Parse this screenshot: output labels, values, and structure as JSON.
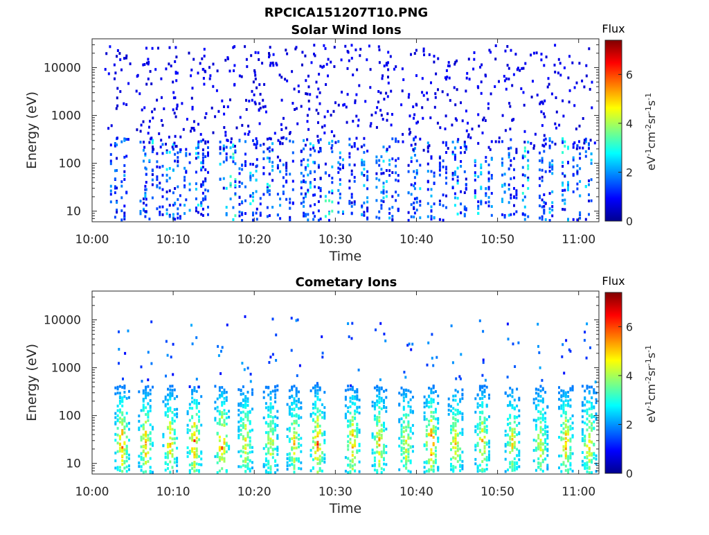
{
  "figure_title": "RPCICA151207T10.PNG",
  "chart_data": [
    {
      "type": "heatmap",
      "title": "Solar Wind Ions",
      "xlabel": "Time",
      "ylabel": "Energy (eV)",
      "x_ticks": [
        "10:00",
        "10:10",
        "10:20",
        "10:30",
        "10:40",
        "10:50",
        "11:00"
      ],
      "x_tick_minutes": [
        0,
        10,
        20,
        30,
        40,
        50,
        60
      ],
      "x_range_minutes": [
        0,
        62.5
      ],
      "y_scale": "log",
      "y_ticks": [
        "10",
        "100",
        "1000",
        "10000"
      ],
      "y_tick_values": [
        10,
        100,
        1000,
        10000
      ],
      "y_range": [
        6,
        40000
      ],
      "colorbar": {
        "label": "Flux",
        "unit": "eV-1cm-2sr-1s-1",
        "ticks": [
          "0",
          "2",
          "4",
          "6"
        ],
        "range": [
          0,
          7.4
        ]
      },
      "colormap": "jet",
      "scan_start_minutes": [
        2.2,
        3.4,
        5.7,
        6.5,
        7.7,
        9.0,
        9.9,
        11.1,
        12.6,
        13.4,
        15.6,
        16.8,
        17.9,
        19.3,
        20.2,
        21.4,
        22.6,
        23.8,
        25.5,
        26.4,
        27.3,
        28.6,
        30.1,
        31.5,
        33.0,
        34.8,
        35.7,
        36.9,
        38.8,
        39.5,
        41.3,
        42.7,
        44.2,
        45.3,
        47.0,
        48.4,
        50.4,
        51.5,
        52.9,
        54.9,
        55.8,
        57.7,
        59.2,
        60.6
      ],
      "scan_peak_flux": [
        1.5,
        1.6,
        1.9,
        2.8,
        1.2,
        2.4,
        1.3,
        1.8,
        2.3,
        1.1,
        2.1,
        3.0,
        1.4,
        2.5,
        1.0,
        2.7,
        1.7,
        1.2,
        1.6,
        2.6,
        1.1,
        2.8,
        1.9,
        1.3,
        2.0,
        1.5,
        2.4,
        1.2,
        1.8,
        2.1,
        1.7,
        1.0,
        2.2,
        1.4,
        2.5,
        1.6,
        1.9,
        1.1,
        2.7,
        1.3,
        2.1,
        2.6,
        1.8,
        2.2
      ]
    },
    {
      "type": "heatmap",
      "title": "Cometary Ions",
      "xlabel": "Time",
      "ylabel": "Energy (eV)",
      "x_ticks": [
        "10:00",
        "10:10",
        "10:20",
        "10:30",
        "10:40",
        "10:50",
        "11:00"
      ],
      "x_tick_minutes": [
        0,
        10,
        20,
        30,
        40,
        50,
        60
      ],
      "x_range_minutes": [
        0,
        62.5
      ],
      "y_scale": "log",
      "y_ticks": [
        "10",
        "100",
        "1000",
        "10000"
      ],
      "y_tick_values": [
        10,
        100,
        1000,
        10000
      ],
      "y_range": [
        6,
        40000
      ],
      "colorbar": {
        "label": "Flux",
        "unit": "eV-1cm-2sr-1s-1",
        "ticks": [
          "0",
          "2",
          "4",
          "6"
        ],
        "range": [
          0,
          7.4
        ]
      },
      "colormap": "jet",
      "burst_center_minutes": [
        3.6,
        6.5,
        9.5,
        12.5,
        15.9,
        18.8,
        21.9,
        24.8,
        27.7,
        32.0,
        35.3,
        38.6,
        41.7,
        44.7,
        48.0,
        51.7,
        55.2,
        58.3,
        61.2
      ],
      "burst_peak_flux": [
        6.3,
        6.0,
        5.8,
        6.5,
        6.4,
        5.6,
        5.2,
        5.4,
        6.6,
        6.1,
        5.9,
        5.5,
        6.7,
        5.7,
        5.6,
        5.4,
        5.3,
        6.0,
        5.8
      ]
    }
  ]
}
